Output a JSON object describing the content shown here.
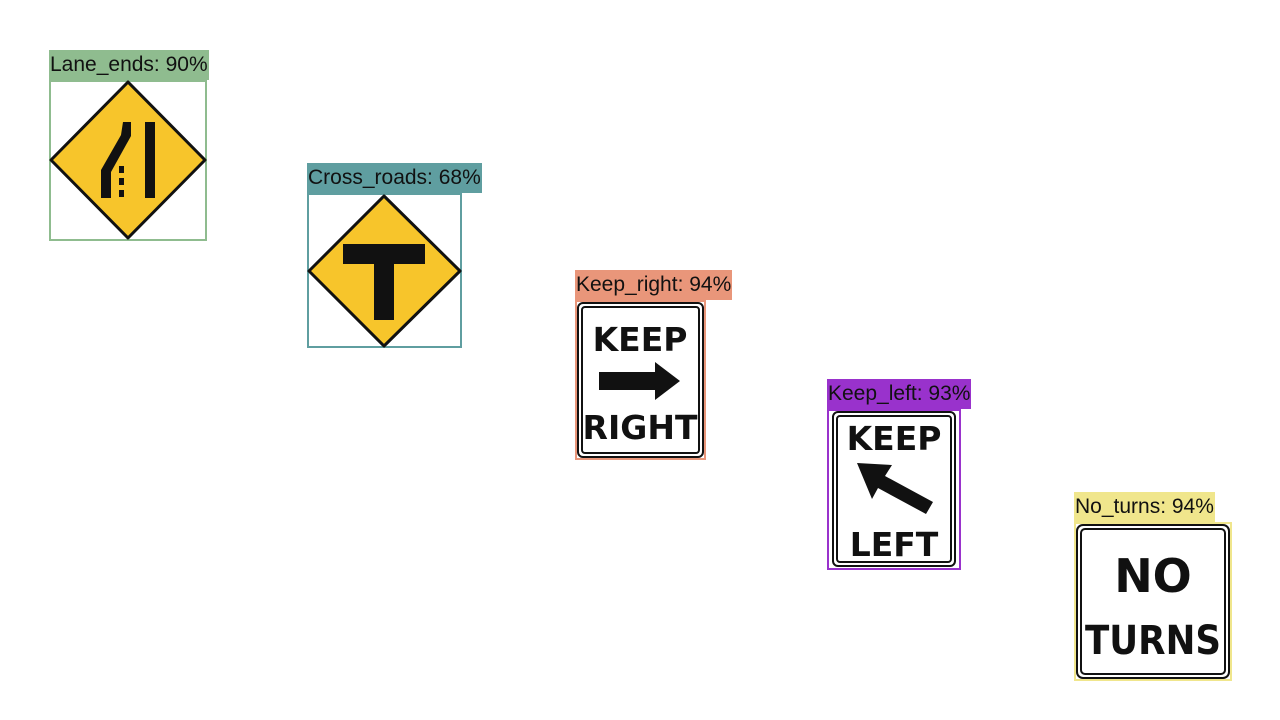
{
  "detections": [
    {
      "class": "Lane_ends",
      "label": "Lane_ends: 90%",
      "color": "#8fbc8f"
    },
    {
      "class": "Cross_roads",
      "label": "Cross_roads: 68%",
      "color": "#5f9ea0"
    },
    {
      "class": "Keep_right",
      "label": "Keep_right: 94%",
      "color": "#e9967a",
      "sign_text": [
        "KEEP",
        "RIGHT"
      ]
    },
    {
      "class": "Keep_left",
      "label": "Keep_left: 93%",
      "color": "#9932cc",
      "sign_text": [
        "KEEP",
        "LEFT"
      ]
    },
    {
      "class": "No_turns",
      "label": "No_turns: 94%",
      "color": "#f0e68c",
      "sign_text": [
        "NO",
        "TURNS"
      ]
    }
  ]
}
